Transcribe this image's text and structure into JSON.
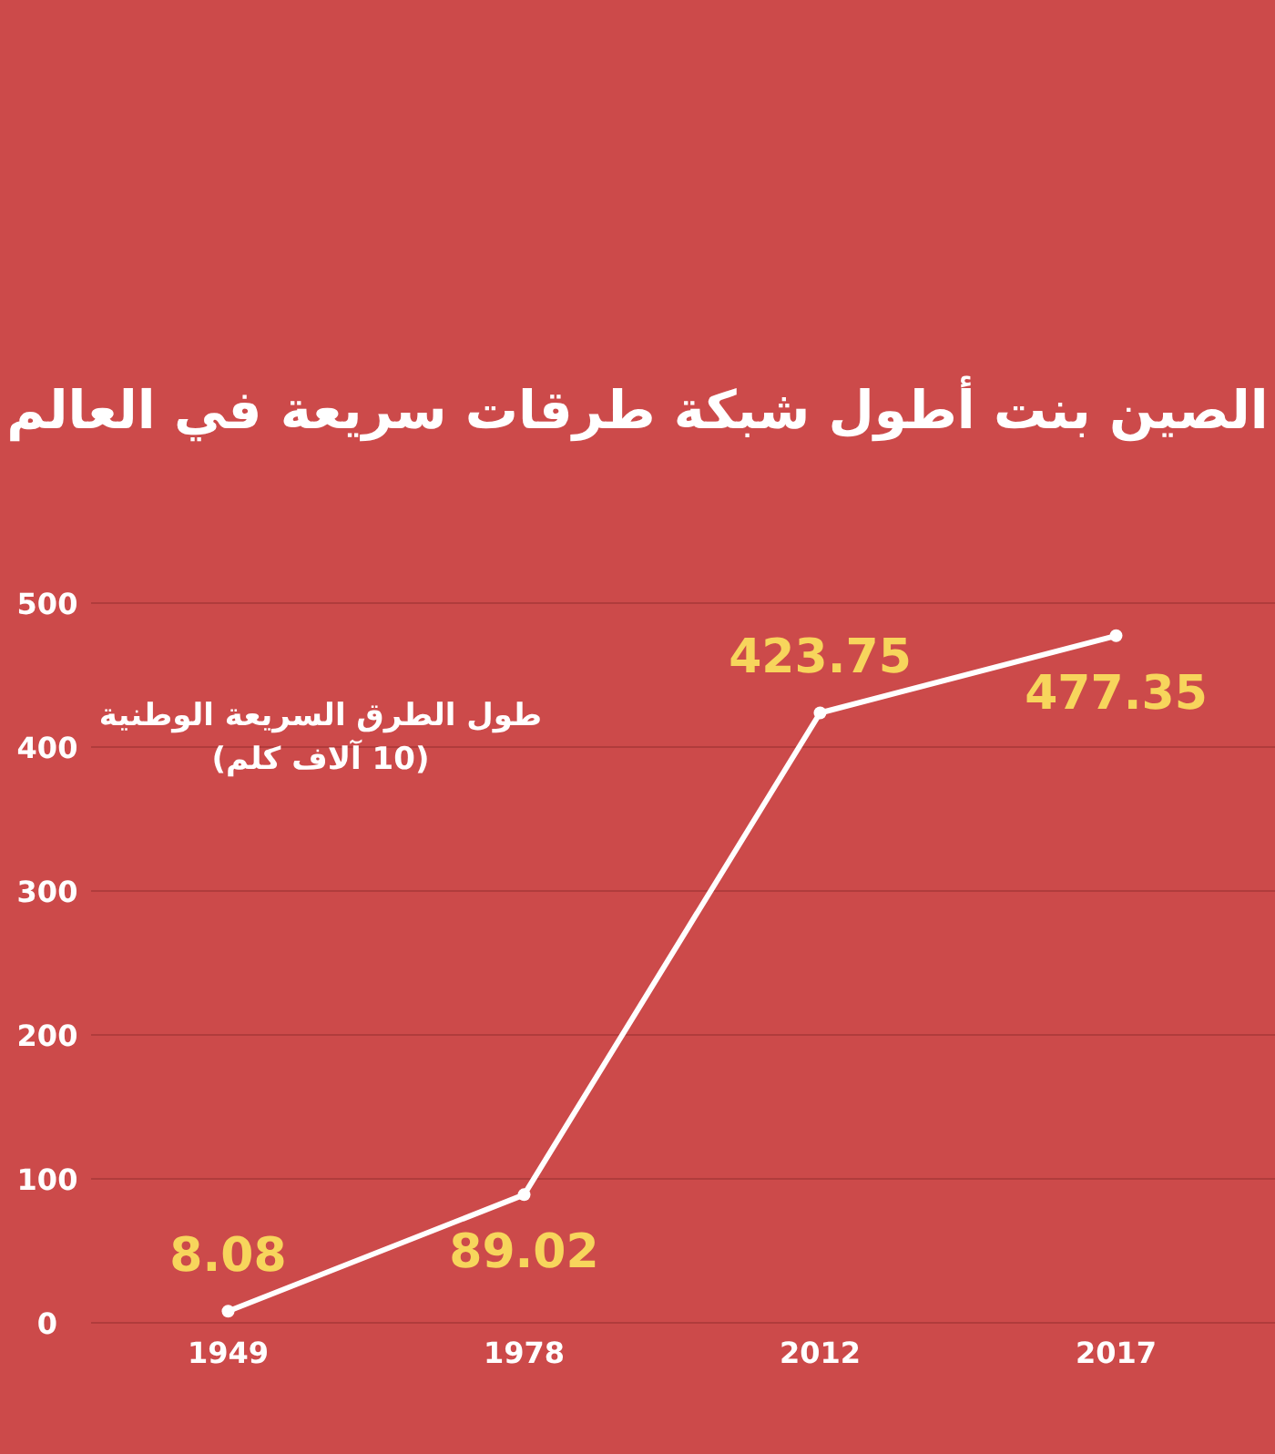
{
  "chart_data": {
    "type": "line",
    "title": "الصين بنت أطول شبكة طرقات سريعة في العالم",
    "annotations": [
      "طول الطرق السريعة الوطنية\n(10 آلاف كلم)"
    ],
    "categories": [
      "1949",
      "1978",
      "2012",
      "2017"
    ],
    "series": [
      {
        "color": "#ffffff",
        "values": [
          8.08,
          89.02,
          423.75,
          477.35
        ]
      }
    ],
    "ylim": [
      0,
      500
    ],
    "yticks": [
      0,
      100,
      200,
      300,
      400,
      500
    ],
    "grid": "y",
    "marker": "circle",
    "line_style": "solid",
    "data_labels": true
  }
}
